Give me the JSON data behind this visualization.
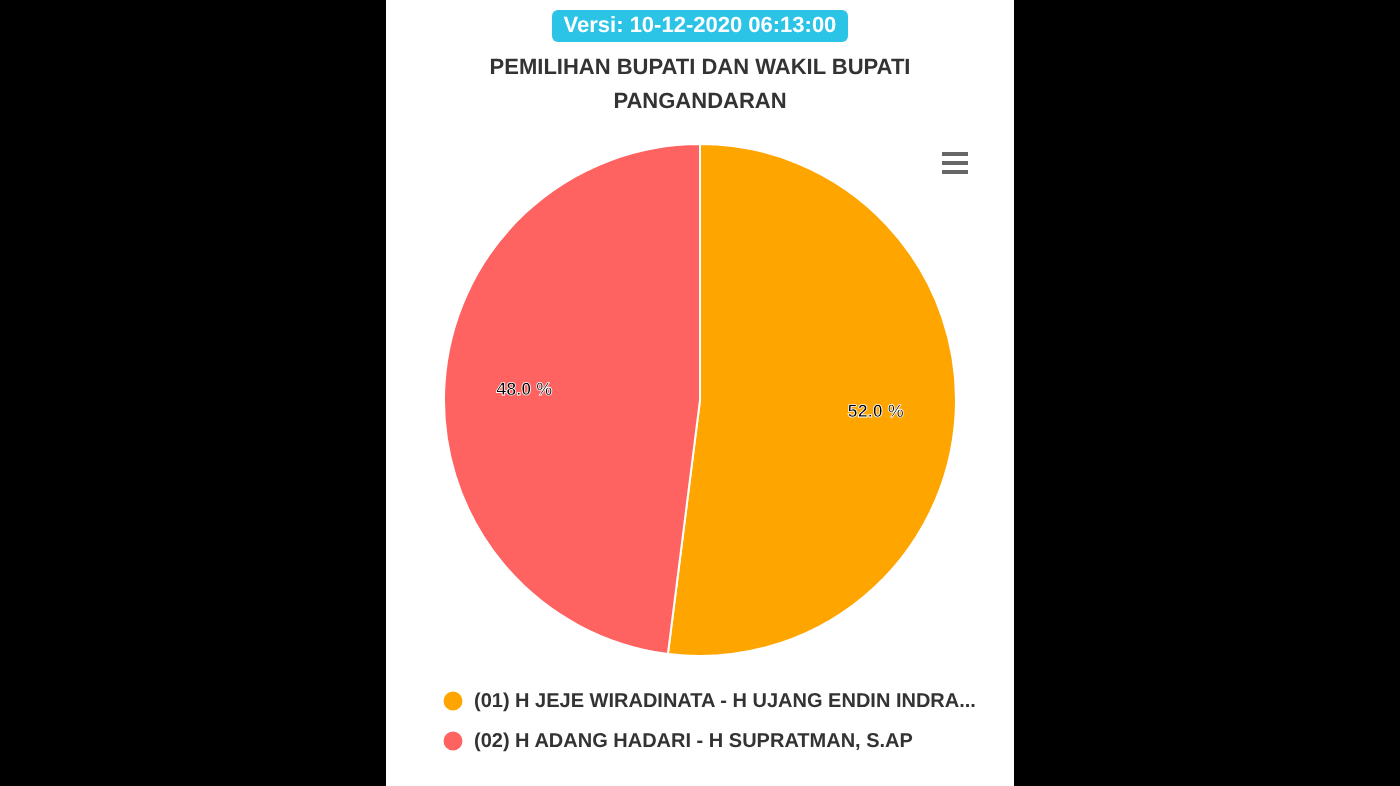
{
  "chart_data": {
    "type": "pie",
    "title": "PEMILIHAN BUPATI DAN WAKIL BUPATI PANGANDARAN",
    "annotations": [
      "Versi: 10-12-2020 06:13:00"
    ],
    "categories": [
      "(01) H JEJE WIRADINATA - H UJANG ENDIN INDRA...",
      "(02) H ADANG HADARI - H SUPRATMAN, S.AP"
    ],
    "values": [
      52,
      48
    ],
    "colors": [
      "#ffa500",
      "#fe6361"
    ],
    "value_labels": [
      "52.0 %",
      "48.0 %"
    ],
    "legend": "bottom"
  }
}
